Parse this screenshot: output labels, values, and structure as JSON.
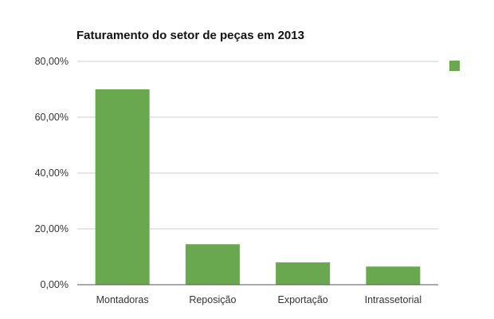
{
  "chart_data": {
    "type": "bar",
    "title": "Faturamento do setor de peças em 2013",
    "categories": [
      "Montadoras",
      "Reposição",
      "Exportação",
      "Intrassetorial"
    ],
    "values": [
      70,
      14.5,
      8,
      6.5
    ],
    "value_unit": "%",
    "y_ticks": [
      "0,00%",
      "20,00%",
      "40,00%",
      "60,00%",
      "80,00%"
    ],
    "ylim": [
      0,
      80
    ],
    "xlabel": "",
    "ylabel": "",
    "grid": true,
    "legend": {
      "placement": "top-right",
      "entries": [
        ""
      ]
    },
    "bar_color": "#6aa84f"
  }
}
